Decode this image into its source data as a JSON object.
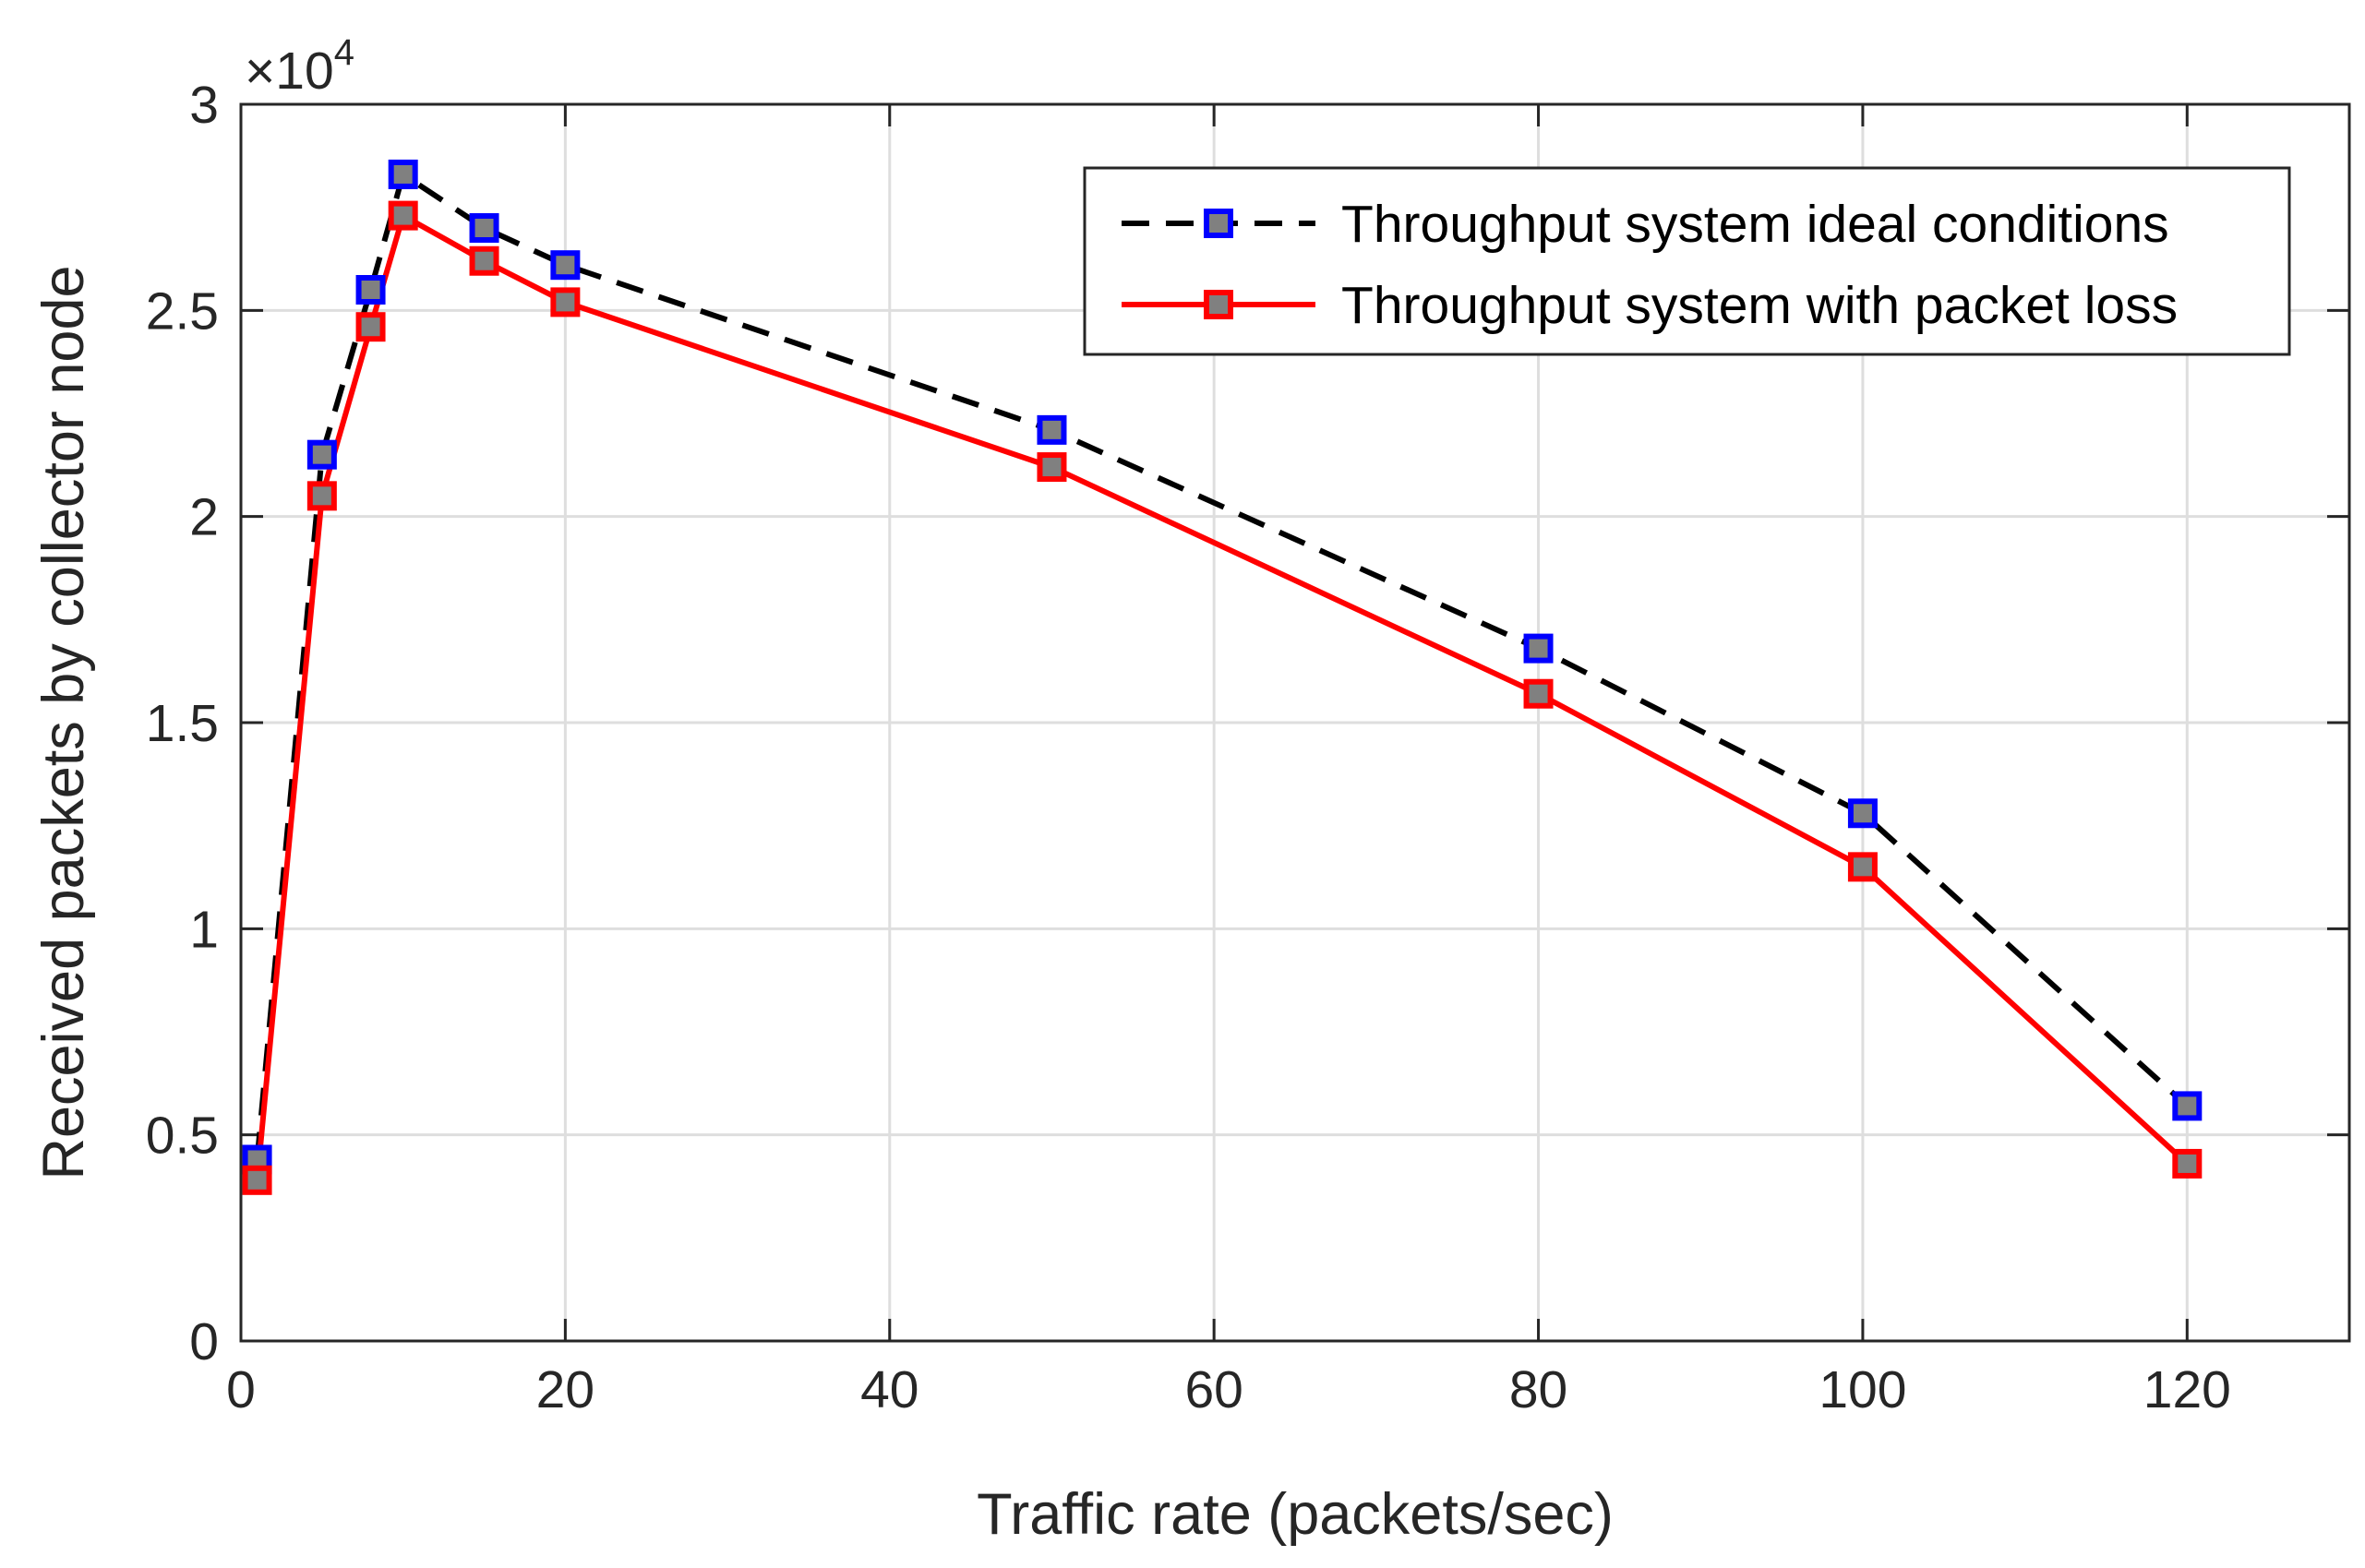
{
  "chart_data": {
    "type": "line",
    "title": "",
    "xlabel": "Traffic rate (packets/sec)",
    "ylabel": "Received packets by collector node",
    "xlim": [
      0,
      130
    ],
    "ylim": [
      0,
      30000
    ],
    "xticks": [
      0,
      20,
      40,
      60,
      80,
      100,
      120
    ],
    "yticks": [
      0,
      5000,
      10000,
      15000,
      20000,
      25000,
      30000
    ],
    "ytick_labels": [
      "0",
      "0.5",
      "1",
      "1.5",
      "2",
      "2.5",
      "3"
    ],
    "y_exponent": {
      "prefix": "×10",
      "power": "4"
    },
    "grid": true,
    "legend_position": "top-right",
    "x": [
      1,
      5,
      8,
      10,
      15,
      20,
      50,
      80,
      100,
      120
    ],
    "series": [
      {
        "name": "Throughput system ideal conditions",
        "values": [
          4400,
          21500,
          25500,
          28300,
          27000,
          26100,
          22100,
          16800,
          12800,
          5700
        ],
        "line_color": "#000000",
        "line_style": "dashed",
        "marker": "square",
        "marker_edge": "#0000ff",
        "marker_face": "#808080"
      },
      {
        "name": "Throughput system with packet loss",
        "values": [
          3900,
          20500,
          24600,
          27300,
          26200,
          25200,
          21200,
          15700,
          11500,
          4300
        ],
        "line_color": "#ff0000",
        "line_style": "solid",
        "marker": "square",
        "marker_edge": "#ff0000",
        "marker_face": "#808080"
      }
    ]
  }
}
